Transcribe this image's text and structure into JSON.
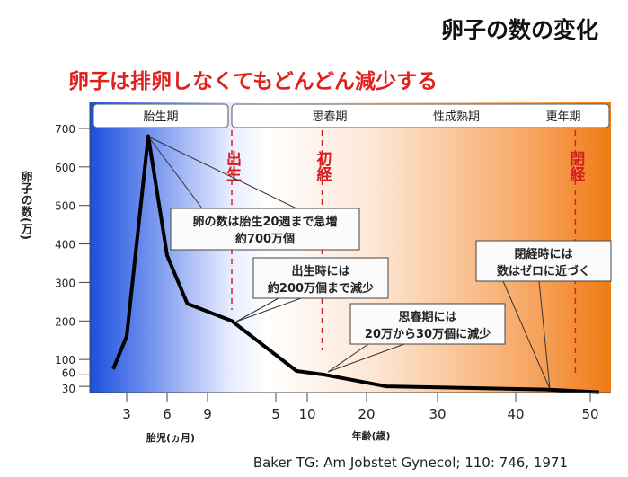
{
  "chart_data": {
    "type": "line",
    "title": "卵子の数の変化",
    "subtitle": "卵子は排卵しなくてもどんどん減少する",
    "ylabel": "卵子の数(万)",
    "xlabel_fetal": "胎児(ヵ月)",
    "xlabel_age": "年齢(歳)",
    "ylim": [
      0,
      700
    ],
    "y_ticks": [
      30,
      60,
      100,
      200,
      300,
      400,
      500,
      600,
      700
    ],
    "x_ticks_fetal": [
      3,
      6,
      9
    ],
    "x_ticks_age": [
      5,
      10,
      20,
      30,
      40,
      50
    ],
    "series": [
      {
        "name": "卵子の数",
        "points": [
          {
            "phase": "fetal",
            "x": 2,
            "y": 75
          },
          {
            "phase": "fetal",
            "x": 3,
            "y": 160
          },
          {
            "phase": "fetal",
            "x": 4.6,
            "y": 680
          },
          {
            "phase": "fetal",
            "x": 6,
            "y": 370
          },
          {
            "phase": "fetal",
            "x": 7.5,
            "y": 245
          },
          {
            "phase": "age",
            "x": 0,
            "y": 200
          },
          {
            "phase": "age",
            "x": 8.3,
            "y": 70
          },
          {
            "phase": "age",
            "x": 13,
            "y": 60
          },
          {
            "phase": "age",
            "x": 22.8,
            "y": 30
          },
          {
            "phase": "age",
            "x": 44,
            "y": 22
          },
          {
            "phase": "age",
            "x": 51.5,
            "y": 15
          }
        ]
      }
    ],
    "periods": [
      "胎生期",
      "思春期",
      "性成熟期",
      "更年期"
    ],
    "events": [
      {
        "label": "出生",
        "phase": "age",
        "x": 0
      },
      {
        "label": "初経",
        "phase": "age",
        "x": 12.5
      },
      {
        "label": "閉経",
        "phase": "age",
        "x": 48
      }
    ],
    "annotations": [
      {
        "line1": "卵の数は胎生20週まで急増",
        "line2": "約700万個"
      },
      {
        "line1": "出生時には",
        "line2": "約200万個まで減少"
      },
      {
        "line1": "思春期には",
        "line2": "20万から30万個に減少"
      },
      {
        "line1": "閉経時には",
        "line2": "数はゼロに近づく"
      }
    ],
    "source": "Baker TG: Am Jobstet Gynecol; 110: 746, 1971",
    "colors": {
      "line": "#000000",
      "event": "#d42020",
      "subtitle": "#e0201c",
      "left_bg": "#1a4fe0",
      "right_bg": "#f08020"
    }
  }
}
